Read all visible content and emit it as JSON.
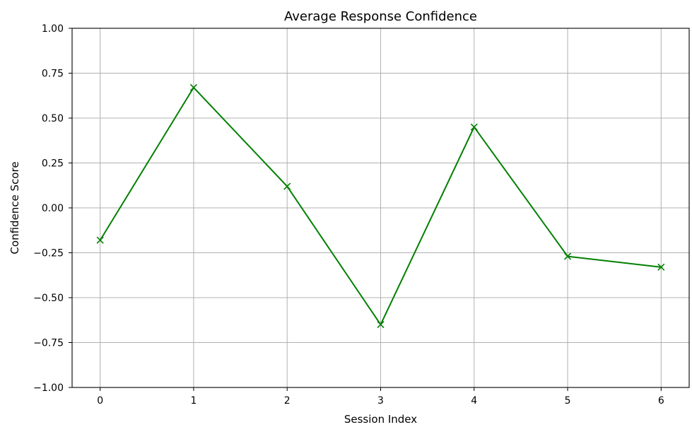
{
  "chart_data": {
    "type": "line",
    "title": "Average Response Confidence",
    "xlabel": "Session Index",
    "ylabel": "Confidence Score",
    "x": [
      0,
      1,
      2,
      3,
      4,
      5,
      6
    ],
    "series": [
      {
        "values": [
          -0.18,
          0.67,
          0.12,
          -0.65,
          0.45,
          -0.27,
          -0.33
        ],
        "color": "#008000",
        "marker": "x"
      }
    ],
    "xlim": [
      -0.3,
      6.3
    ],
    "ylim": [
      -1.0,
      1.0
    ],
    "xticks": [
      0,
      1,
      2,
      3,
      4,
      5,
      6
    ],
    "xtick_labels": [
      "0",
      "1",
      "2",
      "3",
      "4",
      "5",
      "6"
    ],
    "yticks": [
      -1.0,
      -0.75,
      -0.5,
      -0.25,
      0.0,
      0.25,
      0.5,
      0.75,
      1.0
    ],
    "ytick_labels": [
      "−1.00",
      "−0.75",
      "−0.50",
      "−0.25",
      "0.00",
      "0.25",
      "0.50",
      "0.75",
      "1.00"
    ],
    "grid": true,
    "grid_color": "#b0b0b0"
  }
}
